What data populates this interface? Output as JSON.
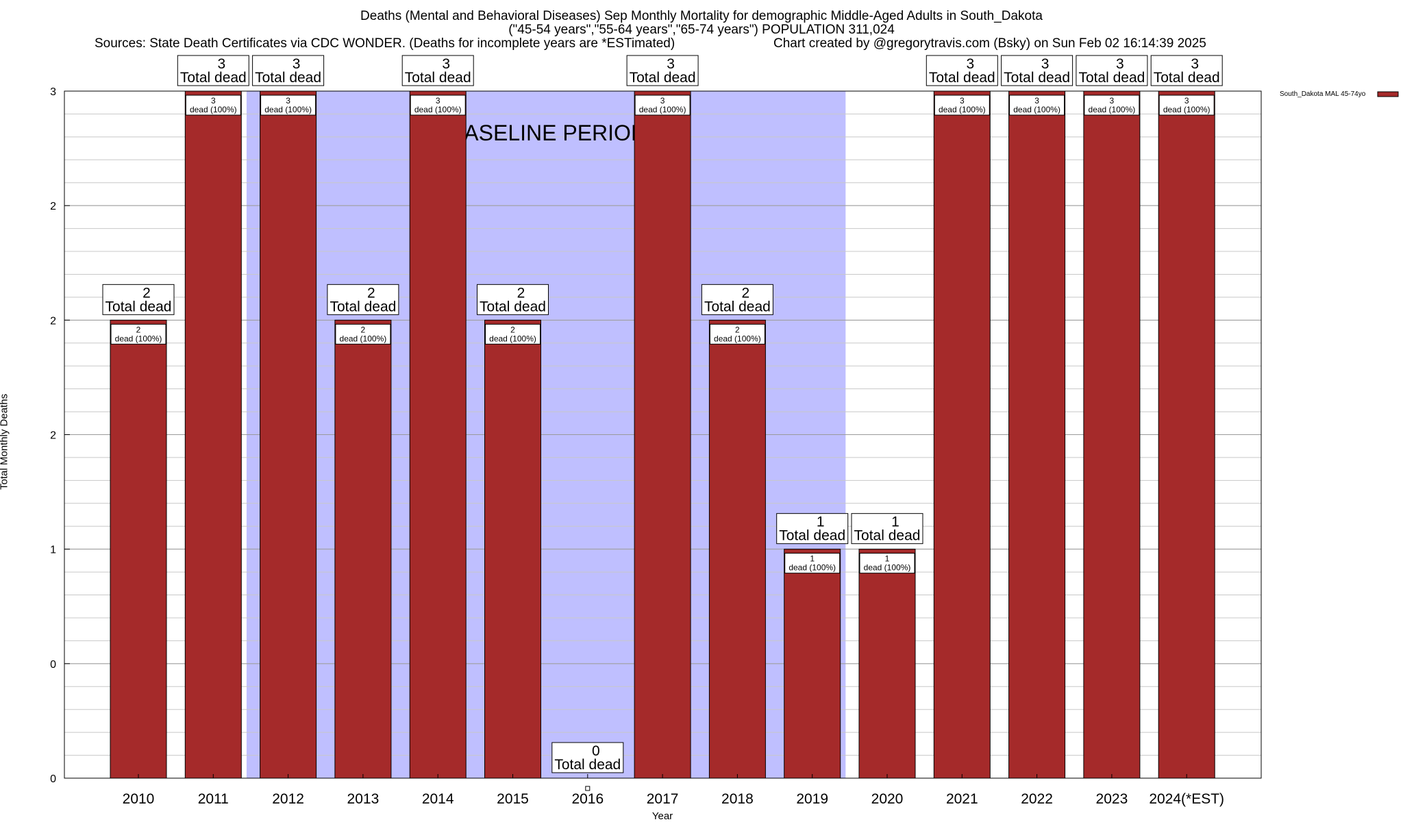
{
  "header": {
    "title_line1": "Deaths (Mental and Behavioral Diseases) Sep Monthly Mortality for demographic Middle-Aged Adults in South_Dakota",
    "title_line2": "(\"45-54 years\",\"55-64 years\",\"65-74 years\") POPULATION 311,024",
    "sources": "Sources: State Death Certificates via CDC WONDER. (Deaths for incomplete years are *ESTimated)",
    "credit": "Chart created by @gregorytravis.com (Bsky) on Sun Feb 02 16:14:39 2025"
  },
  "chart_data": {
    "type": "bar",
    "categories": [
      "2010",
      "2011",
      "2012",
      "2013",
      "2014",
      "2015",
      "2016",
      "2017",
      "2018",
      "2019",
      "2020",
      "2021",
      "2022",
      "2023",
      "2024(*EST)"
    ],
    "series": [
      {
        "name": "South_Dakota MAL 45-74yo",
        "values": [
          2,
          3,
          3,
          2,
          3,
          2,
          0,
          3,
          2,
          1,
          1,
          3,
          3,
          3,
          3
        ],
        "color": "#a52a2a"
      }
    ],
    "bar_top_labels": [
      "2\nTotal dead",
      "3\nTotal dead",
      "3\nTotal dead",
      "2\nTotal dead",
      "3\nTotal dead",
      "2\nTotal dead",
      "0\nTotal dead",
      "3\nTotal dead",
      "2\nTotal dead",
      "1\nTotal dead",
      "1\nTotal dead",
      "3\nTotal dead",
      "3\nTotal dead",
      "3\nTotal dead",
      "3\nTotal dead"
    ],
    "bar_inner_labels": [
      "2\ndead (100%)",
      "3\ndead (100%)",
      "3\ndead (100%)",
      "2\ndead (100%)",
      "3\ndead (100%)",
      "2\ndead (100%)",
      "",
      "3\ndead (100%)",
      "2\ndead (100%)",
      "1\ndead (100%)",
      "1\ndead (100%)",
      "3\ndead (100%)",
      "3\ndead (100%)",
      "3\ndead (100%)",
      "3\ndead (100%)"
    ],
    "xlabel": "Year",
    "ylabel": "Total Monthly Deaths",
    "ylim": [
      0,
      3
    ],
    "y_ticks": [
      0,
      0.5,
      1,
      1.5,
      2,
      2.5,
      3
    ],
    "y_tick_labels": [
      "0",
      "0",
      "1",
      "2",
      "2",
      "2",
      "3"
    ],
    "grid": true,
    "baseline_period": {
      "label": "BASELINE PERIOD",
      "from": "2012",
      "to": "2019",
      "color": "#bfbfff"
    },
    "legend": {
      "position": "top-right"
    }
  }
}
